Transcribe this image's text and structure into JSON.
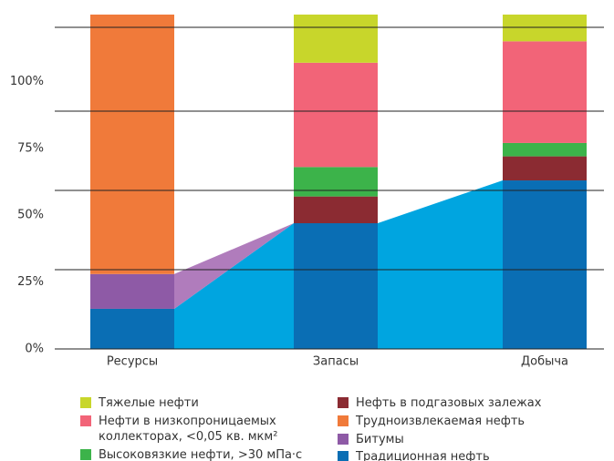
{
  "chart_data": {
    "type": "stacked_bar",
    "categories": [
      "Ресурсы",
      "Запасы",
      "Добыча"
    ],
    "ylim": [
      0,
      125
    ],
    "yticks": [
      {
        "value": 0,
        "label": "0%"
      },
      {
        "value": 25,
        "label": "25%"
      },
      {
        "value": 50,
        "label": "50%"
      },
      {
        "value": 75,
        "label": "75%"
      },
      {
        "value": 100,
        "label": "100%"
      }
    ],
    "series": [
      {
        "name": "Традиционная нефть",
        "color": "#0a6eb4",
        "area_color": "#00a5e0",
        "values": [
          15,
          47,
          63
        ]
      },
      {
        "name": "Битумы",
        "color": "#8e5aa6",
        "area_color": "#b07cbc",
        "values": [
          13,
          0,
          0
        ]
      },
      {
        "name": "Трудноизвлекаемая нефть",
        "color": "#f07a3a",
        "values": [
          97,
          0,
          0
        ]
      },
      {
        "name": "Нефть в подгазовых залежах",
        "color": "#8b2b32",
        "values": [
          0,
          10,
          9
        ]
      },
      {
        "name": "Высоковязкие нефти, >30 мПа·с",
        "color": "#3cb34a",
        "values": [
          0,
          11,
          5
        ]
      },
      {
        "name": "Нефти в низкопроницаемых коллекторах, <0,05 кв. мкм²",
        "color": "#f26478",
        "values": [
          0,
          39,
          38
        ]
      },
      {
        "name": "Тяжелые нефти",
        "color": "#c8d62b",
        "values": [
          0,
          18,
          10
        ]
      }
    ]
  }
}
